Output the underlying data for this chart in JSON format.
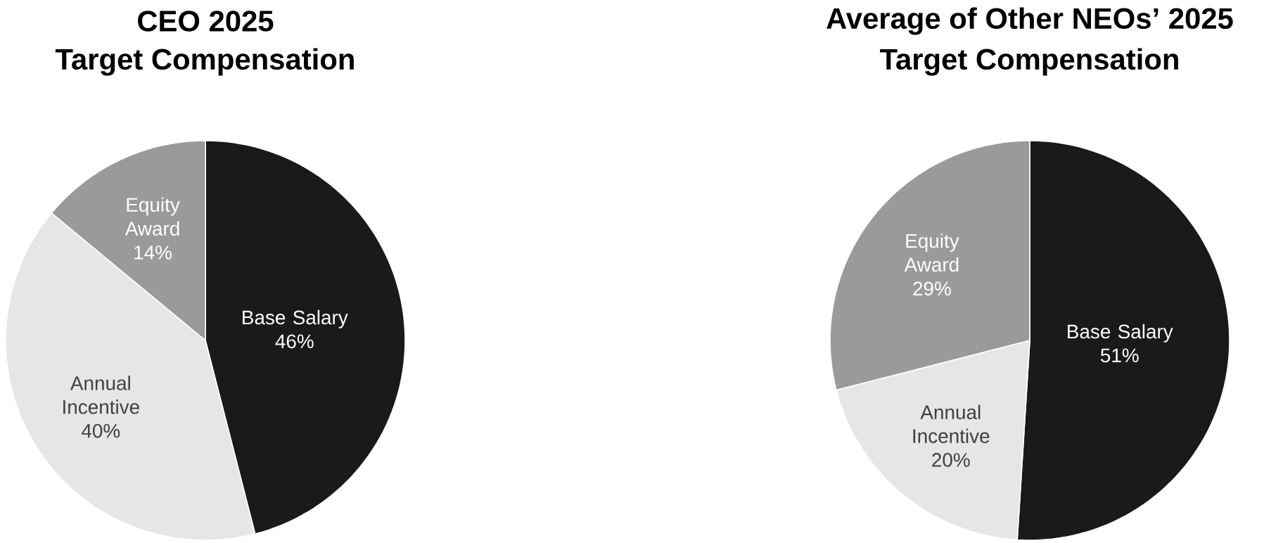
{
  "chart_data": [
    {
      "type": "pie",
      "title": "CEO 2025",
      "subtitle": "Target Compensation",
      "categories": [
        "Base Salary",
        "Annual Incentive",
        "Equity Award"
      ],
      "values": [
        46,
        40,
        14
      ],
      "value_labels": [
        "46%",
        "40%",
        "14%"
      ],
      "colors": [
        "#1a1a1a",
        "#e6e6e6",
        "#9a9a9a"
      ]
    },
    {
      "type": "pie",
      "title": "Average of Other NEOs’ 2025",
      "subtitle": "Target Compensation",
      "categories": [
        "Base Salary",
        "Annual Incentive",
        "Equity Award"
      ],
      "values": [
        51,
        20,
        29
      ],
      "value_labels": [
        "51%",
        "20%",
        "29%"
      ],
      "colors": [
        "#1a1a1a",
        "#e6e6e6",
        "#9a9a9a"
      ]
    }
  ]
}
